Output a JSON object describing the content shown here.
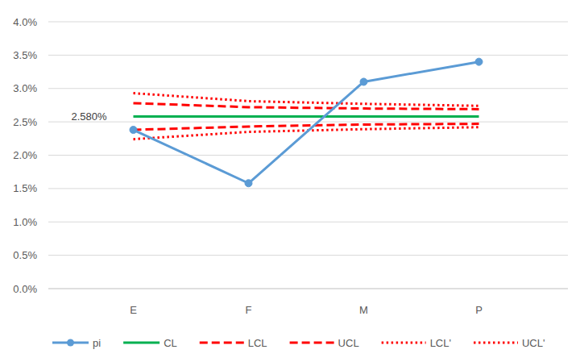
{
  "chart_data": {
    "type": "line",
    "categories": [
      "E",
      "F",
      "M",
      "P"
    ],
    "ylim": [
      0,
      4
    ],
    "yticks": [
      {
        "value": 0,
        "label": "0.0%"
      },
      {
        "value": 0.5,
        "label": "0.5%"
      },
      {
        "value": 1,
        "label": "1.0%"
      },
      {
        "value": 1.5,
        "label": "1.5%"
      },
      {
        "value": 2,
        "label": "2.0%"
      },
      {
        "value": 2.5,
        "label": "2.5%"
      },
      {
        "value": 3,
        "label": "3.0%"
      },
      {
        "value": 3.5,
        "label": "3.5%"
      },
      {
        "value": 4,
        "label": "4.0%"
      }
    ],
    "grid": true,
    "legend": "bottom",
    "series": [
      {
        "name": "pi",
        "color": "#5b9bd5",
        "line_style": "solid",
        "marker": "circle",
        "values": [
          2.38,
          1.58,
          3.1,
          3.4
        ]
      },
      {
        "name": "CL",
        "color": "#00b050",
        "line_style": "solid",
        "marker": "none",
        "values": [
          2.58,
          2.58,
          2.58,
          2.58
        ],
        "value_labels": [
          "2.580%",
          null,
          null,
          null
        ]
      },
      {
        "name": "LCL",
        "color": "#ff0000",
        "line_style": "dashed",
        "marker": "none",
        "values": [
          2.38,
          2.43,
          2.46,
          2.47
        ]
      },
      {
        "name": "UCL",
        "color": "#ff0000",
        "line_style": "dashed",
        "marker": "none",
        "values": [
          2.78,
          2.72,
          2.7,
          2.69
        ]
      },
      {
        "name": "LCL'",
        "color": "#ff0000",
        "line_style": "dotted",
        "marker": "none",
        "values": [
          2.24,
          2.35,
          2.39,
          2.42
        ]
      },
      {
        "name": "UCL'",
        "color": "#ff0000",
        "line_style": "dotted",
        "marker": "none",
        "values": [
          2.93,
          2.81,
          2.77,
          2.74
        ]
      }
    ]
  }
}
